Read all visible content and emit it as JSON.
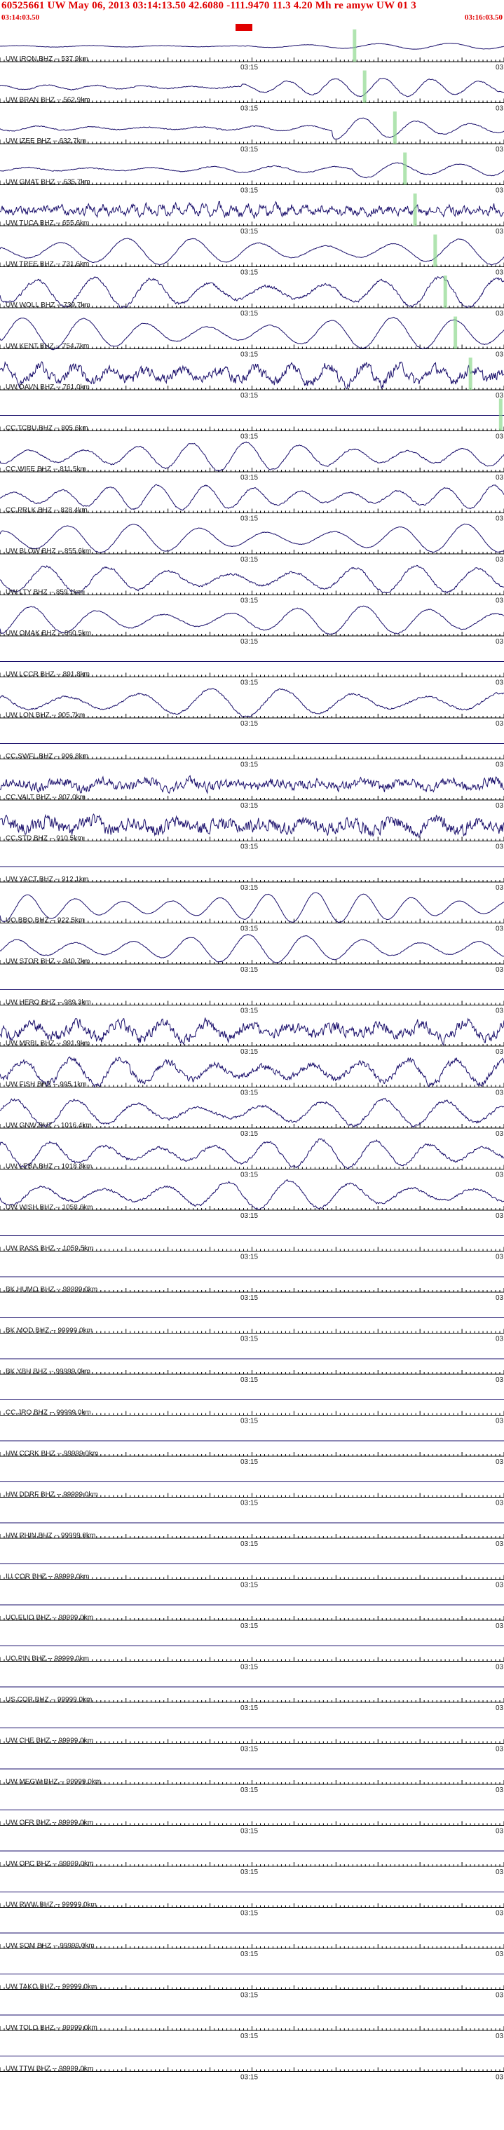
{
  "header": {
    "title": "60525661 UW May 06, 2013 03:14:13.50   42.6080 -111.9470 11.3 4.20 Mh re amyw UW 01   3",
    "start_time": "03:14:03.50",
    "end_time": "03:16:03.50",
    "mid_tick_label": "03:15",
    "edge_tick_label": "03"
  },
  "colors": {
    "title": "#e00000",
    "trace": "#1a0f6b",
    "phase_marker": "#8fd88f",
    "origin_marker": "#e00000",
    "axis": "#000000"
  },
  "stations": [
    {
      "label": "UW IRON BHZ -- 537.9km",
      "amp": 0.18,
      "freq": 0.06,
      "noise": 0.02,
      "onset": 0.49,
      "post": 0.9,
      "marker": 0.7
    },
    {
      "label": "UW BRAN BHZ -- 562.9km",
      "amp": 0.55,
      "freq": 0.09,
      "noise": 0.05,
      "onset": 0.48,
      "post": 0.9,
      "marker": 0.72
    },
    {
      "label": "UW IZEE BHZ -- 632.7km",
      "amp": 0.65,
      "freq": 0.08,
      "noise": 0.05,
      "onset": 0.66,
      "post": 0.9,
      "marker": 0.78
    },
    {
      "label": "UW GMAT BHZ -- 635.7km",
      "amp": 0.75,
      "freq": 0.07,
      "noise": 0.05,
      "onset": 0.7,
      "post": 0.9,
      "marker": 0.8
    },
    {
      "label": "UW TUCA BHZ -- 655.6km",
      "amp": 0.3,
      "freq": 0.3,
      "noise": 0.45,
      "onset": 0.0,
      "post": 0.0,
      "marker": 0.82
    },
    {
      "label": "UW TREE BHZ -- 731.6km",
      "amp": 0.8,
      "freq": 0.065,
      "noise": 0.05,
      "onset": 0.0,
      "post": 0.0,
      "marker": 0.86
    },
    {
      "label": "UW WOLL BHZ -- 739.7km",
      "amp": 0.9,
      "freq": 0.075,
      "noise": 0.15,
      "onset": 0.0,
      "post": 0.0,
      "marker": 0.88
    },
    {
      "label": "UW KENT BHZ -- 754.7km",
      "amp": 0.95,
      "freq": 0.07,
      "noise": 0.05,
      "onset": 0.0,
      "post": 0.0,
      "marker": 0.9
    },
    {
      "label": "UW DAVN BHZ -- 761.0km",
      "amp": 0.55,
      "freq": 0.12,
      "noise": 0.55,
      "onset": 0.0,
      "post": 0.0,
      "marker": 0.93
    },
    {
      "label": "CC TCBU BHZ -- 805.6km",
      "amp": 0.0,
      "freq": 0.1,
      "noise": 0.0,
      "onset": 0.0,
      "post": 0.0,
      "marker": 0.99
    },
    {
      "label": "CC WIFE BHZ -- 811.5km",
      "amp": 0.85,
      "freq": 0.08,
      "noise": 0.08,
      "onset": 0.0,
      "post": 0.0,
      "marker": -1
    },
    {
      "label": "CC PRLK BHZ -- 828.4km",
      "amp": 0.75,
      "freq": 0.09,
      "noise": 0.08,
      "onset": 0.0,
      "post": 0.0,
      "marker": -1
    },
    {
      "label": "UW BLOW BHZ -- 855.6km",
      "amp": 0.85,
      "freq": 0.065,
      "noise": 0.04,
      "onset": 0.0,
      "post": 0.0,
      "marker": -1
    },
    {
      "label": "UW LTY BHZ -- 859.1km",
      "amp": 0.8,
      "freq": 0.07,
      "noise": 0.12,
      "onset": 0.0,
      "post": 0.0,
      "marker": -1
    },
    {
      "label": "UW OMAK BHZ -- 860.5km",
      "amp": 0.85,
      "freq": 0.065,
      "noise": 0.06,
      "onset": 0.0,
      "post": 0.0,
      "marker": -1
    },
    {
      "label": "UW LCCR BHZ -- 891.8km",
      "amp": 0.0,
      "freq": 0.1,
      "noise": 0.0,
      "onset": 0.0,
      "post": 0.0,
      "marker": -1
    },
    {
      "label": "UW LON BHZ -- 905.7km",
      "amp": 0.85,
      "freq": 0.06,
      "noise": 0.1,
      "onset": 0.0,
      "post": 0.0,
      "marker": -1
    },
    {
      "label": "CC SWFL BHZ -- 906.8km",
      "amp": 0.0,
      "freq": 0.1,
      "noise": 0.0,
      "onset": 0.0,
      "post": 0.0,
      "marker": -1
    },
    {
      "label": "CC VALT BHZ -- 907.0km",
      "amp": 0.25,
      "freq": 0.1,
      "noise": 0.5,
      "onset": 0.0,
      "post": 0.0,
      "marker": -1
    },
    {
      "label": "CC STD BHZ -- 910.5km",
      "amp": 0.3,
      "freq": 0.1,
      "noise": 0.7,
      "onset": 0.0,
      "post": 0.0,
      "marker": -1
    },
    {
      "label": "UW YACT BHZ -- 912.1km",
      "amp": 0.0,
      "freq": 0.1,
      "noise": 0.0,
      "onset": 0.0,
      "post": 0.0,
      "marker": -1
    },
    {
      "label": "UO BBO BHZ -- 922.5km",
      "amp": 0.9,
      "freq": 0.09,
      "noise": 0.03,
      "onset": 0.0,
      "post": 0.0,
      "marker": -1
    },
    {
      "label": "UW STOR BHZ -- 940.7km",
      "amp": 0.85,
      "freq": 0.075,
      "noise": 0.05,
      "onset": 0.0,
      "post": 0.0,
      "marker": -1
    },
    {
      "label": "UW HERO BHZ -- 989.3km",
      "amp": 0.0,
      "freq": 0.1,
      "noise": 0.0,
      "onset": 0.0,
      "post": 0.0,
      "marker": -1
    },
    {
      "label": "UW MRBL BHZ -- 991.9km",
      "amp": 0.5,
      "freq": 0.1,
      "noise": 0.6,
      "onset": 0.0,
      "post": 0.0,
      "marker": -1
    },
    {
      "label": "UW FISH BHZ -- 995.1km",
      "amp": 0.75,
      "freq": 0.09,
      "noise": 0.35,
      "onset": 0.0,
      "post": 0.0,
      "marker": -1
    },
    {
      "label": "UW GNW BHZ -- 1016.4km",
      "amp": 0.8,
      "freq": 0.07,
      "noise": 0.15,
      "onset": 0.0,
      "post": 0.0,
      "marker": -1
    },
    {
      "label": "UW LEBA BHZ -- 1018.8km",
      "amp": 0.85,
      "freq": 0.08,
      "noise": 0.15,
      "onset": 0.0,
      "post": 0.0,
      "marker": -1
    },
    {
      "label": "UW WISH BHZ -- 1058.6km",
      "amp": 0.85,
      "freq": 0.07,
      "noise": 0.12,
      "onset": 0.0,
      "post": 0.0,
      "marker": -1
    },
    {
      "label": "UW RASS BHZ -- 1059.5km",
      "amp": 0.0,
      "freq": 0.1,
      "noise": 0.0,
      "onset": 0.0,
      "post": 0.0,
      "marker": -1
    },
    {
      "label": "BK HUMO BHZ -- 99999.0km",
      "amp": 0.0,
      "freq": 0.1,
      "noise": 0.0,
      "onset": 0.0,
      "post": 0.0,
      "marker": -1
    },
    {
      "label": "BK MOD BHZ -- 99999.0km",
      "amp": 0.0,
      "freq": 0.1,
      "noise": 0.0,
      "onset": 0.0,
      "post": 0.0,
      "marker": -1
    },
    {
      "label": "BK YBH BHZ -- 99999.0km",
      "amp": 0.0,
      "freq": 0.1,
      "noise": 0.0,
      "onset": 0.0,
      "post": 0.0,
      "marker": -1
    },
    {
      "label": "CC JRO BHZ -- 99999.0km",
      "amp": 0.0,
      "freq": 0.1,
      "noise": 0.0,
      "onset": 0.0,
      "post": 0.0,
      "marker": -1
    },
    {
      "label": "HW CCRK BHZ -- 99999.0km",
      "amp": 0.0,
      "freq": 0.1,
      "noise": 0.0,
      "onset": 0.0,
      "post": 0.0,
      "marker": -1
    },
    {
      "label": "HW DDRF BHZ -- 99999.0km",
      "amp": 0.0,
      "freq": 0.1,
      "noise": 0.0,
      "onset": 0.0,
      "post": 0.0,
      "marker": -1
    },
    {
      "label": "HW RHIN BHZ -- 99999.0km",
      "amp": 0.0,
      "freq": 0.1,
      "noise": 0.0,
      "onset": 0.0,
      "post": 0.0,
      "marker": -1
    },
    {
      "label": "IU COR BHZ -- 99999.0km",
      "amp": 0.0,
      "freq": 0.1,
      "noise": 0.0,
      "onset": 0.0,
      "post": 0.0,
      "marker": -1
    },
    {
      "label": "UO ELIO BHZ -- 99999.0km",
      "amp": 0.0,
      "freq": 0.1,
      "noise": 0.0,
      "onset": 0.0,
      "post": 0.0,
      "marker": -1
    },
    {
      "label": "UO PIN BHZ -- 99999.0km",
      "amp": 0.0,
      "freq": 0.1,
      "noise": 0.0,
      "onset": 0.0,
      "post": 0.0,
      "marker": -1
    },
    {
      "label": "US COR BHZ -- 99999.0km",
      "amp": 0.0,
      "freq": 0.1,
      "noise": 0.0,
      "onset": 0.0,
      "post": 0.0,
      "marker": -1
    },
    {
      "label": "UW CHE BHZ -- 99999.0km",
      "amp": 0.0,
      "freq": 0.1,
      "noise": 0.0,
      "onset": 0.0,
      "post": 0.0,
      "marker": -1
    },
    {
      "label": "UW MEGW BHZ -- 99999.0km",
      "amp": 0.0,
      "freq": 0.1,
      "noise": 0.0,
      "onset": 0.0,
      "post": 0.0,
      "marker": -1
    },
    {
      "label": "UW OFR BHZ -- 99999.0km",
      "amp": 0.0,
      "freq": 0.1,
      "noise": 0.0,
      "onset": 0.0,
      "post": 0.0,
      "marker": -1
    },
    {
      "label": "UW OPC BHZ -- 99999.0km",
      "amp": 0.0,
      "freq": 0.1,
      "noise": 0.0,
      "onset": 0.0,
      "post": 0.0,
      "marker": -1
    },
    {
      "label": "UW RWW BHZ -- 99999.0km",
      "amp": 0.0,
      "freq": 0.1,
      "noise": 0.0,
      "onset": 0.0,
      "post": 0.0,
      "marker": -1
    },
    {
      "label": "UW SQM BHZ -- 99999.0km",
      "amp": 0.0,
      "freq": 0.1,
      "noise": 0.0,
      "onset": 0.0,
      "post": 0.0,
      "marker": -1
    },
    {
      "label": "UW TAKO BHZ -- 99999.0km",
      "amp": 0.0,
      "freq": 0.1,
      "noise": 0.0,
      "onset": 0.0,
      "post": 0.0,
      "marker": -1
    },
    {
      "label": "UW TOLO BHZ -- 99999.0km",
      "amp": 0.0,
      "freq": 0.1,
      "noise": 0.0,
      "onset": 0.0,
      "post": 0.0,
      "marker": -1
    },
    {
      "label": "UW TTW BHZ -- 99999.0km",
      "amp": 0.0,
      "freq": 0.1,
      "noise": 0.0,
      "onset": 0.0,
      "post": 0.0,
      "marker": -1
    }
  ]
}
